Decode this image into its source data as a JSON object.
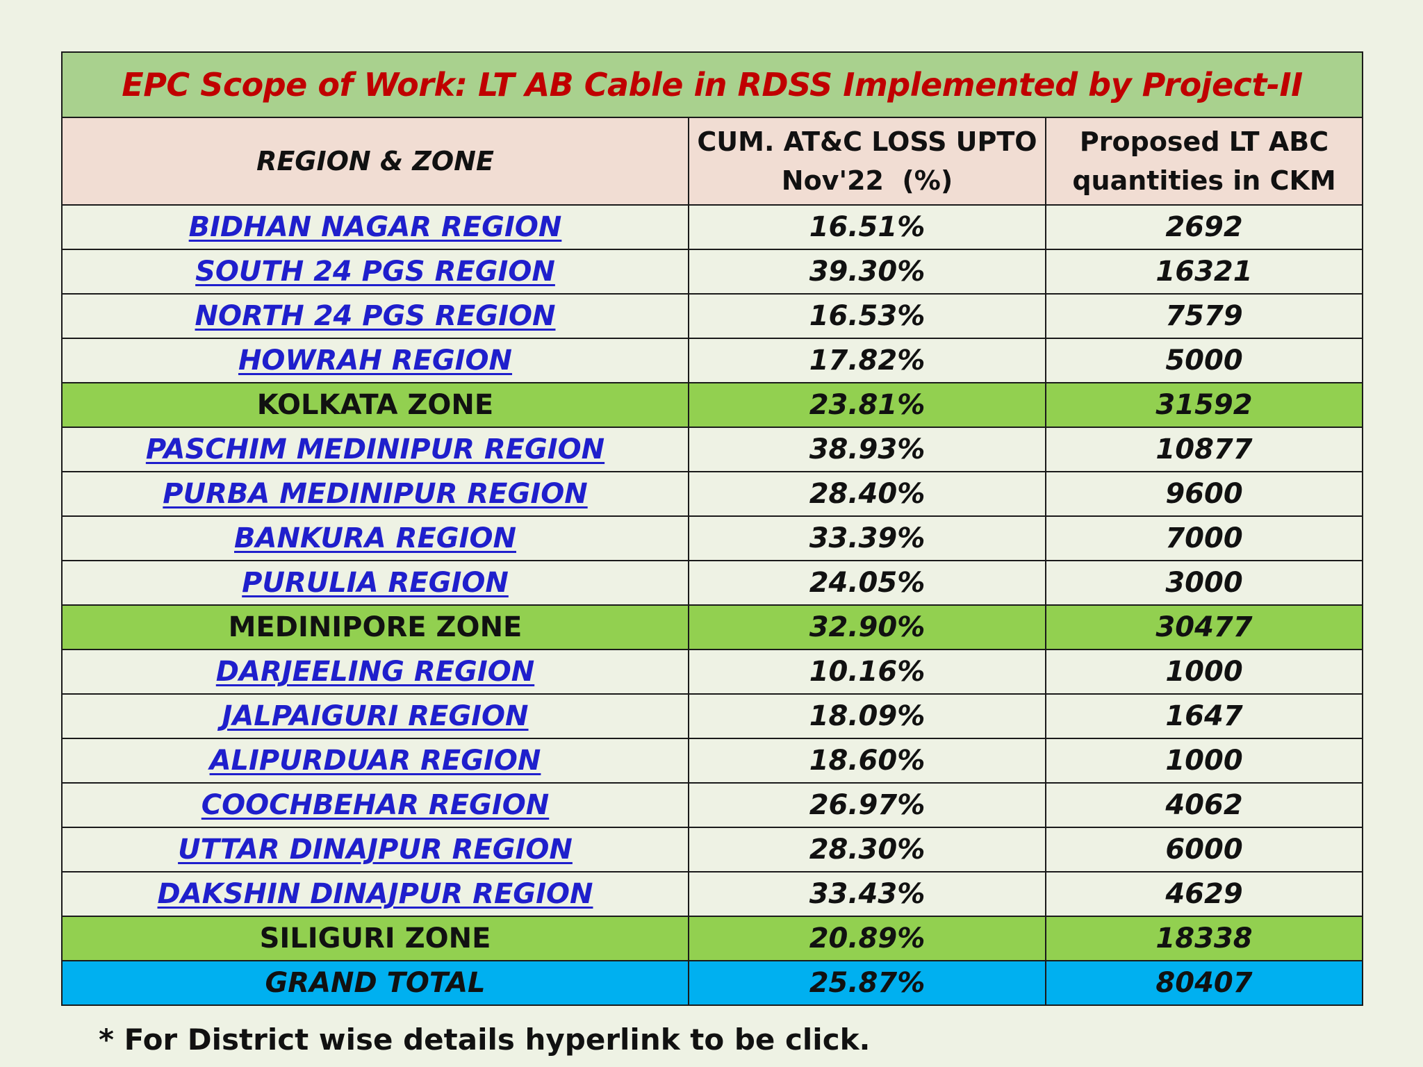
{
  "title": "EPC Scope of Work: LT AB Cable in RDSS Implemented by Project-II",
  "headers": {
    "region_zone": "REGION & ZONE",
    "atc_loss_line1": "CUM. AT&C LOSS UPTO",
    "atc_loss_line2": "Nov'22  (%)",
    "ltabc_line1": "Proposed LT ABC",
    "ltabc_line2": "quantities in CKM"
  },
  "rows": [
    {
      "name": "BIDHAN NAGAR REGION",
      "loss": "16.51%",
      "qty": "2692",
      "kind": "region"
    },
    {
      "name": "SOUTH 24 PGS REGION",
      "loss": "39.30%",
      "qty": "16321",
      "kind": "region"
    },
    {
      "name": "NORTH 24 PGS REGION",
      "loss": "16.53%",
      "qty": "7579",
      "kind": "region"
    },
    {
      "name": "HOWRAH REGION",
      "loss": "17.82%",
      "qty": "5000",
      "kind": "region"
    },
    {
      "name": "KOLKATA ZONE",
      "loss": "23.81%",
      "qty": "31592",
      "kind": "zone"
    },
    {
      "name": "PASCHIM MEDINIPUR REGION",
      "loss": "38.93%",
      "qty": "10877",
      "kind": "region"
    },
    {
      "name": "PURBA MEDINIPUR REGION",
      "loss": "28.40%",
      "qty": "9600",
      "kind": "region"
    },
    {
      "name": "BANKURA REGION",
      "loss": "33.39%",
      "qty": "7000",
      "kind": "region"
    },
    {
      "name": "PURULIA REGION",
      "loss": "24.05%",
      "qty": "3000",
      "kind": "region"
    },
    {
      "name": "MEDINIPORE ZONE",
      "loss": "32.90%",
      "qty": "30477",
      "kind": "zone"
    },
    {
      "name": "DARJEELING REGION",
      "loss": "10.16%",
      "qty": "1000",
      "kind": "region"
    },
    {
      "name": "JALPAIGURI REGION",
      "loss": "18.09%",
      "qty": "1647",
      "kind": "region"
    },
    {
      "name": "ALIPURDUAR REGION",
      "loss": "18.60%",
      "qty": "1000",
      "kind": "region"
    },
    {
      "name": "COOCHBEHAR REGION",
      "loss": "26.97%",
      "qty": "4062",
      "kind": "region"
    },
    {
      "name": "UTTAR DINAJPUR REGION",
      "loss": "28.30%",
      "qty": "6000",
      "kind": "region"
    },
    {
      "name": "DAKSHIN DINAJPUR REGION",
      "loss": "33.43%",
      "qty": "4629",
      "kind": "region"
    },
    {
      "name": "SILIGURI ZONE",
      "loss": "20.89%",
      "qty": "18338",
      "kind": "zone"
    },
    {
      "name": "GRAND TOTAL",
      "loss": "25.87%",
      "qty": "80407",
      "kind": "total"
    }
  ],
  "footnote": "* For District wise details hyperlink to be click.",
  "colors": {
    "background": "#EEF2E4",
    "title_band": "#A9D18E",
    "title_text": "#C00000",
    "header_band": "#F1DDD3",
    "zone_band": "#92D050",
    "total_band": "#00B0F0",
    "link": "#1F1FCC"
  }
}
